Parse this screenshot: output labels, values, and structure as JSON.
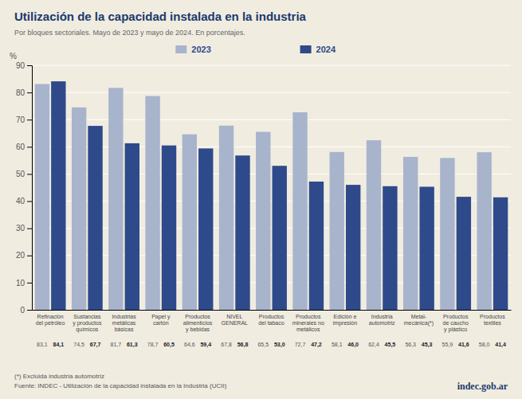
{
  "chart_data": {
    "type": "bar",
    "title": "Utilización de la capacidad instalada en la industria",
    "subtitle": "Por bloques sectoriales. Mayo de 2023 y mayo de 2024. En porcentajes.",
    "categories": [
      "Refinación\ndel petróleo",
      "Sustancias\ny productos\nquímicos",
      "Industrias\nmetálicas\nbásicas",
      "Papel y\ncartón",
      "Productos\nalimenticios\ny bebidas",
      "NIVEL\nGENERAL",
      "Productos\ndel tabaco",
      "Productos\nminerales no\nmetálicos",
      "Edición e\nimpresión",
      "Industria\nautomotriz",
      "Metal-\nmecánica(*)",
      "Productos\nde caucho\ny plástico",
      "Productos\ntextiles"
    ],
    "series": [
      {
        "name": "2023",
        "color": "#a8b4cc",
        "values": [
          83.1,
          74.5,
          81.7,
          78.7,
          64.6,
          67.8,
          65.5,
          72.7,
          58.1,
          62.4,
          56.3,
          55.9,
          58.0
        ],
        "value_labels": [
          "83,1",
          "74,5",
          "81,7",
          "78,7",
          "64,6",
          "67,8",
          "65,5",
          "72,7",
          "58,1",
          "62,4",
          "56,3",
          "55,9",
          "58,0"
        ]
      },
      {
        "name": "2024",
        "color": "#2e4a8a",
        "values": [
          84.1,
          67.7,
          61.3,
          60.5,
          59.4,
          56.8,
          53.0,
          47.2,
          46.0,
          45.5,
          45.3,
          41.6,
          41.4
        ],
        "value_labels": [
          "84,1",
          "67,7",
          "61,3",
          "60,5",
          "59,4",
          "56,8",
          "53,0",
          "47,2",
          "46,0",
          "45,5",
          "45,3",
          "41,6",
          "41,4"
        ]
      }
    ],
    "ylabel": "%",
    "ylim": [
      0,
      90
    ],
    "yticks": [
      0,
      10,
      20,
      30,
      40,
      50,
      60,
      70,
      80,
      90
    ],
    "grid": true,
    "legend": "top",
    "data_labels": true,
    "annotations": [
      "(*) Excluida industria automotriz",
      "Fuente: INDEC - Utilización de la capacidad instalada en la Industria (UCII)",
      "indec.gob.ar"
    ]
  }
}
